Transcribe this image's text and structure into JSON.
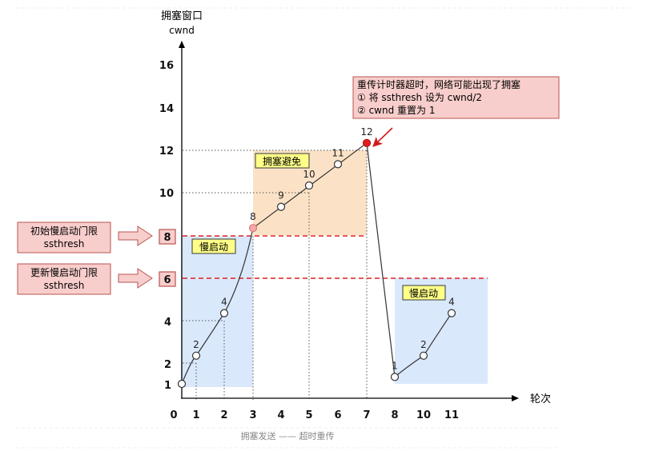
{
  "y_axis": {
    "title_line1": "拥塞窗口",
    "title_line2": "cwnd",
    "ticks": [
      "16",
      "14",
      "12",
      "10",
      "8",
      "6",
      "4",
      "2",
      "1"
    ]
  },
  "x_axis": {
    "title": "轮次",
    "ticks": [
      "0",
      "1",
      "2",
      "3",
      "4",
      "5",
      "6",
      "7",
      "8",
      "10",
      "11"
    ]
  },
  "regions": {
    "slow_start_1": "慢启动",
    "congestion_avoidance": "拥塞避免",
    "slow_start_2": "慢启动"
  },
  "callouts": {
    "initial_ssthresh_line1": "初始慢启动门限",
    "initial_ssthresh_line2": "ssthresh",
    "updated_ssthresh_line1": "更新慢启动门限",
    "updated_ssthresh_line2": "ssthresh",
    "timeout_line1": "重传计时器超时，网络可能出现了拥塞",
    "timeout_line2": "① 将 ssthresh 设为 cwnd/2",
    "timeout_line3": "② cwnd 重置为 1"
  },
  "caption": "拥塞发送 —— 超时重传",
  "colors": {
    "slow_start_fill": "#dae8fc",
    "avoidance_fill": "#fbe2c6",
    "label_fill": "#ffff88",
    "callout_fill": "#f8cecc",
    "callout_stroke": "#b85450",
    "threshold_line": "#e02020",
    "peak_point": "#e02020",
    "entry_point": "#f4a9a9"
  },
  "chart_data": {
    "type": "line",
    "xlabel": "轮次",
    "ylabel": "拥塞窗口 cwnd",
    "ylim": [
      0,
      17
    ],
    "initial_ssthresh": 8,
    "updated_ssthresh": 6,
    "series": [
      {
        "values": [
          {
            "round": 0,
            "cwnd": 1,
            "label": ""
          },
          {
            "round": 1,
            "cwnd": 2,
            "label": "2"
          },
          {
            "round": 2,
            "cwnd": 4,
            "label": "4"
          },
          {
            "round": 3,
            "cwnd": 8,
            "label": "8"
          },
          {
            "round": 4,
            "cwnd": 9,
            "label": "9"
          },
          {
            "round": 5,
            "cwnd": 10,
            "label": "10"
          },
          {
            "round": 6,
            "cwnd": 11,
            "label": "11"
          },
          {
            "round": 7,
            "cwnd": 12,
            "label": "12"
          },
          {
            "round": 8,
            "cwnd": 1,
            "label": "1"
          },
          {
            "round": 10,
            "cwnd": 2,
            "label": "2"
          },
          {
            "round": 11,
            "cwnd": 4,
            "label": "4"
          }
        ]
      }
    ]
  }
}
